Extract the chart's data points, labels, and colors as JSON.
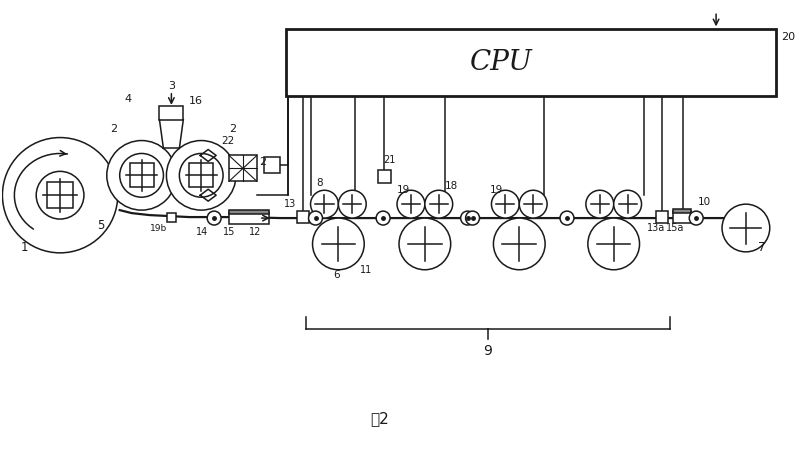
{
  "bg_color": "#ffffff",
  "line_color": "#1a1a1a",
  "fig_label": "图2",
  "cpu_label": "CPU",
  "cpu_num": "20"
}
